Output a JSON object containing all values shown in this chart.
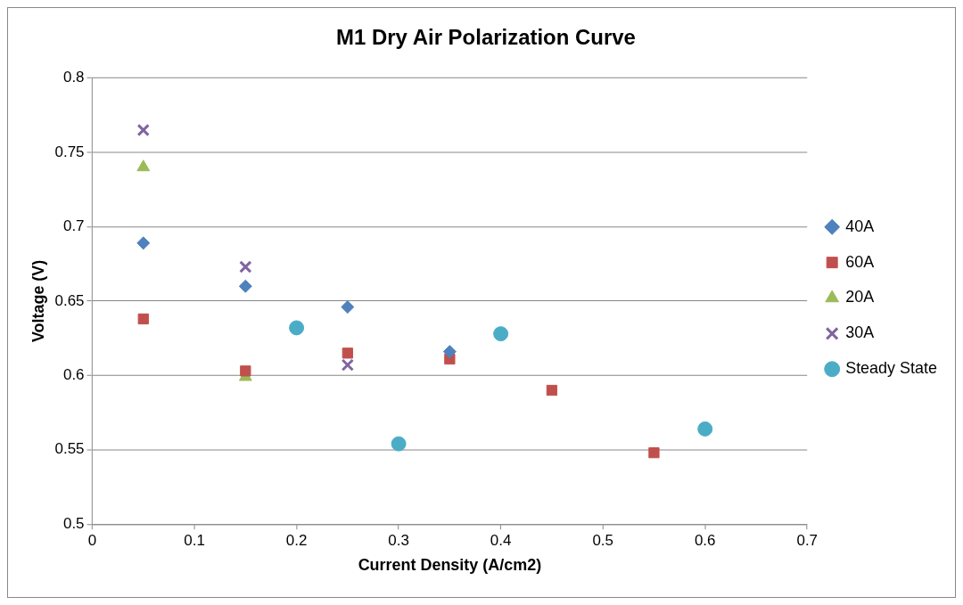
{
  "chart_data": {
    "type": "scatter",
    "title": "M1 Dry Air Polarization Curve",
    "xlabel": "Current Density (A/cm2)",
    "ylabel": "Voltage (V)",
    "xlim": [
      0,
      0.7
    ],
    "xticks": [
      0,
      0.1,
      0.2,
      0.3,
      0.4,
      0.5,
      0.6,
      0.7
    ],
    "ylim": [
      0.5,
      0.8
    ],
    "yticks": [
      0.5,
      0.55,
      0.6,
      0.65,
      0.7,
      0.75,
      0.8
    ],
    "grid": "y",
    "legend": "right",
    "series": [
      {
        "name": "40A",
        "color": "#4f81bd",
        "marker": "diamond",
        "x": [
          0.05,
          0.15,
          0.25,
          0.35
        ],
        "values": [
          0.689,
          0.66,
          0.646,
          0.616
        ]
      },
      {
        "name": "60A",
        "color": "#c0504d",
        "marker": "square",
        "x": [
          0.05,
          0.15,
          0.25,
          0.35,
          0.45,
          0.55
        ],
        "values": [
          0.638,
          0.603,
          0.615,
          0.611,
          0.59,
          0.548
        ]
      },
      {
        "name": "20A",
        "color": "#9bbb59",
        "marker": "triangle",
        "x": [
          0.05,
          0.15
        ],
        "values": [
          0.74,
          0.599
        ]
      },
      {
        "name": "30A",
        "color": "#8064a2",
        "marker": "cross",
        "x": [
          0.05,
          0.15,
          0.25
        ],
        "values": [
          0.765,
          0.673,
          0.607
        ]
      },
      {
        "name": "Steady State",
        "color": "#4bacc6",
        "marker": "circle",
        "x": [
          0.2,
          0.3,
          0.4,
          0.6
        ],
        "values": [
          0.632,
          0.554,
          0.628,
          0.564
        ]
      }
    ]
  }
}
